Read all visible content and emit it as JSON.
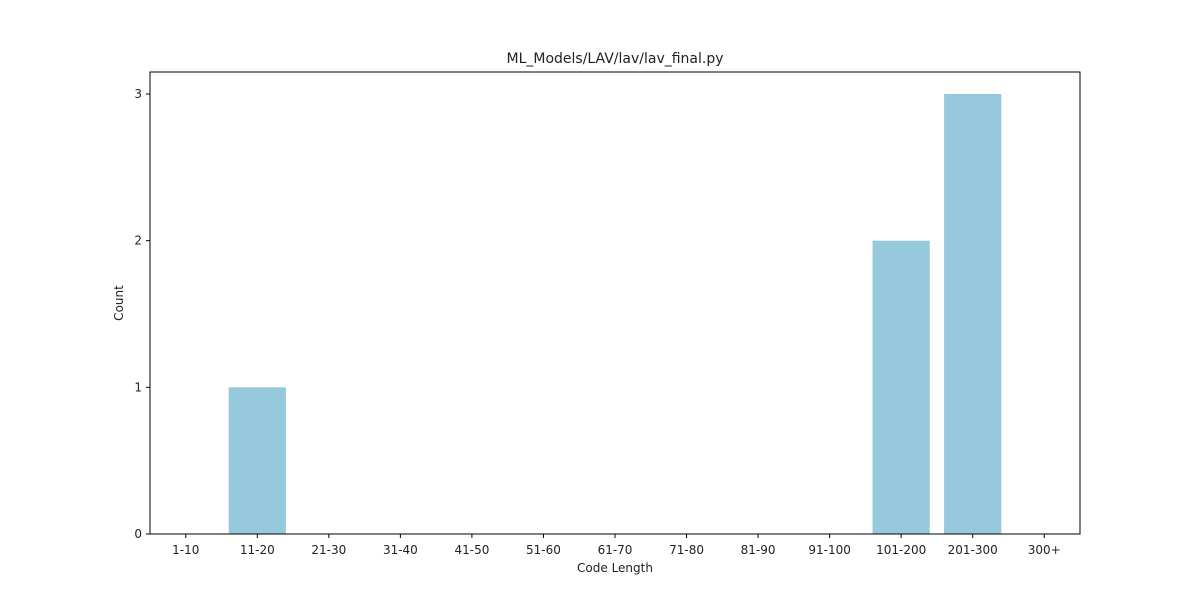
{
  "chart_data": {
    "type": "bar",
    "title": "ML_Models/LAV/lav/lav_final.py",
    "xlabel": "Code Length",
    "ylabel": "Count",
    "categories": [
      "1-10",
      "11-20",
      "21-30",
      "31-40",
      "41-50",
      "51-60",
      "61-70",
      "71-80",
      "81-90",
      "91-100",
      "101-200",
      "201-300",
      "300+"
    ],
    "values": [
      0,
      1,
      0,
      0,
      0,
      0,
      0,
      0,
      0,
      0,
      2,
      3,
      0
    ],
    "yticks": [
      0,
      1,
      2,
      3
    ],
    "ylim": [
      0,
      3.15
    ],
    "bar_color": "#96c9dc",
    "grid": false,
    "legend": false
  }
}
